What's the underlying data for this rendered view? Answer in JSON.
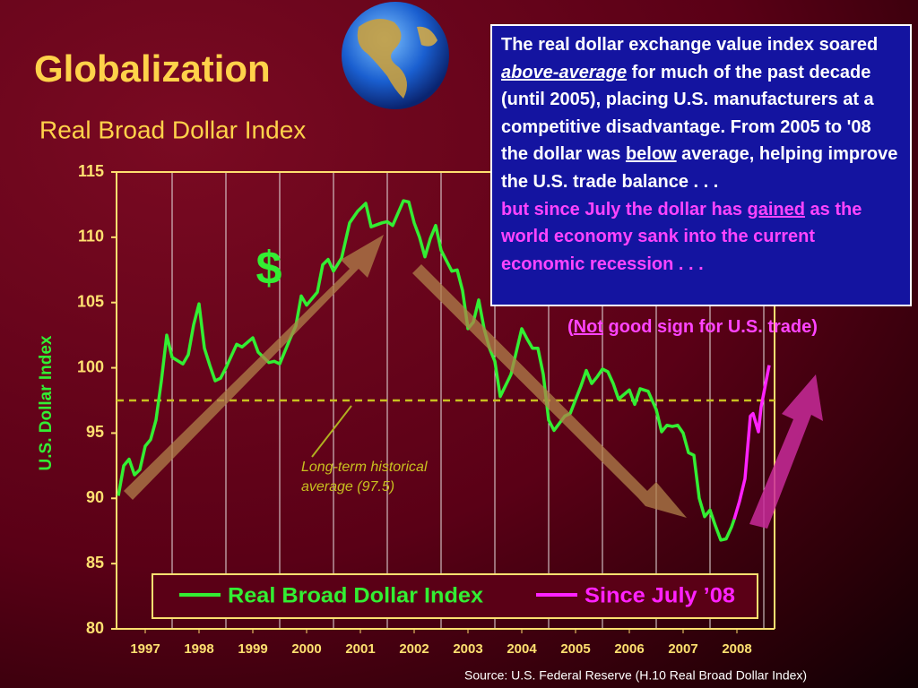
{
  "title": "Globalization",
  "annotation": [
    "The real dollar exchange value index soared ",
    "above-average",
    " for much of the past decade (until 2005), placing U.S. manufacturers at a competitive disadvantage. From 2005 to '08 the dollar was ",
    "below",
    " average, helping improve the U.S. trade balance . . .",
    "but since July the dollar has ",
    "gained",
    " as the world economy sank into the current economic recession . . ."
  ],
  "note": [
    "(",
    "Not",
    " good sign for U.S. trade)"
  ],
  "symbol": "$",
  "source": "Source:  U.S. Federal Reserve (H.10 Real Broad Dollar Index)",
  "chart_data": {
    "type": "line",
    "title": "Real Broad Dollar Index",
    "y_label": "U.S. Dollar Index",
    "ylim": [
      80,
      115
    ],
    "yticks": [
      80,
      85,
      90,
      95,
      100,
      105,
      110,
      115
    ],
    "xlim": [
      1997,
      2009.2
    ],
    "xticks": [
      {
        "value": 1997.5,
        "label": "1997"
      },
      {
        "value": 1998.5,
        "label": "1998"
      },
      {
        "value": 1999.5,
        "label": "1999"
      },
      {
        "value": 2000.5,
        "label": "2000"
      },
      {
        "value": 2001.5,
        "label": "2001"
      },
      {
        "value": 2002.5,
        "label": "2002"
      },
      {
        "value": 2003.5,
        "label": "2003"
      },
      {
        "value": 2004.5,
        "label": "2004"
      },
      {
        "value": 2005.5,
        "label": "2005"
      },
      {
        "value": 2006.5,
        "label": "2006"
      },
      {
        "value": 2007.5,
        "label": "2007"
      },
      {
        "value": 2008.5,
        "label": "2008"
      }
    ],
    "xgrid": [
      1998,
      1999,
      2000,
      2001,
      2002,
      2003,
      2004,
      2005,
      2006,
      2007,
      2008,
      2009
    ],
    "average": {
      "value": 97.5,
      "label": [
        "Long-term historical",
        "average (97.5)"
      ]
    },
    "series": [
      {
        "name": "Real Broad Dollar Index",
        "color": "#33ee33",
        "x": [
          1997.0,
          1997.1,
          1997.2,
          1997.3,
          1997.4,
          1997.5,
          1997.6,
          1997.7,
          1997.8,
          1997.9,
          1998.0,
          1998.2,
          1998.3,
          1998.4,
          1998.5,
          1998.6,
          1998.7,
          1998.8,
          1998.9,
          1999.0,
          1999.2,
          1999.3,
          1999.5,
          1999.6,
          1999.8,
          1999.9,
          2000.0,
          2000.2,
          2000.3,
          2000.4,
          2000.5,
          2000.7,
          2000.8,
          2000.9,
          2001.0,
          2001.15,
          2001.3,
          2001.45,
          2001.6,
          2001.7,
          2001.9,
          2002.0,
          2002.1,
          2002.3,
          2002.4,
          2002.5,
          2002.6,
          2002.7,
          2002.8,
          2002.9,
          2003.0,
          2003.2,
          2003.3,
          2003.4,
          2003.5,
          2003.6,
          2003.7,
          2003.8,
          2003.9,
          2004.0,
          2004.1,
          2004.3,
          2004.5,
          2004.6,
          2004.7,
          2004.8,
          2004.9,
          2005.0,
          2005.1,
          2005.3,
          2005.4,
          2005.6,
          2005.7,
          2005.8,
          2005.9,
          2006.0,
          2006.1,
          2006.2,
          2006.3,
          2006.5,
          2006.6,
          2006.7,
          2006.85,
          2007.0,
          2007.1,
          2007.2,
          2007.3,
          2007.4,
          2007.5,
          2007.6,
          2007.7,
          2007.8,
          2007.9,
          2008.0,
          2008.1,
          2008.2,
          2008.3,
          2008.4,
          2008.45
        ],
        "values": [
          90.2,
          92.5,
          93,
          91.8,
          92.2,
          94,
          94.5,
          96,
          99,
          102.5,
          100.8,
          100.3,
          101,
          103.3,
          104.9,
          101.5,
          100.2,
          99,
          99.2,
          100,
          101.8,
          101.6,
          102.3,
          101.2,
          100.4,
          100.5,
          100.3,
          102.3,
          103.2,
          105.5,
          104.8,
          105.8,
          107.9,
          108.3,
          107.4,
          108.4,
          111.1,
          112,
          112.6,
          110.8,
          111.1,
          111.2,
          110.9,
          112.8,
          112.7,
          111.1,
          110,
          108.5,
          109.9,
          110.9,
          109,
          107.4,
          107.5,
          105.9,
          103,
          103.5,
          105.2,
          103,
          101.5,
          100.5,
          97.8,
          99.5,
          103,
          102.2,
          101.5,
          101.5,
          99.5,
          96,
          95.2,
          96.3,
          96.5,
          98.6,
          99.8,
          98.8,
          99.3,
          99.9,
          99.7,
          98.8,
          97.6,
          98.3,
          97.2,
          98.4,
          98.2,
          96.8,
          95.1,
          95.6,
          95.5,
          95.6,
          95,
          93.5,
          93.3,
          90,
          88.6,
          89.1,
          87.9,
          86.8,
          86.9,
          87.8,
          88.4
        ]
      },
      {
        "name": "Since July ’08",
        "color": "#ff22ff",
        "x": [
          2008.45,
          2008.55,
          2008.65,
          2008.75,
          2008.8,
          2008.9,
          2008.95,
          2009.1
        ],
        "values": [
          88.4,
          89.8,
          91.5,
          96.3,
          96.5,
          95.1,
          97,
          100.2
        ]
      }
    ]
  }
}
